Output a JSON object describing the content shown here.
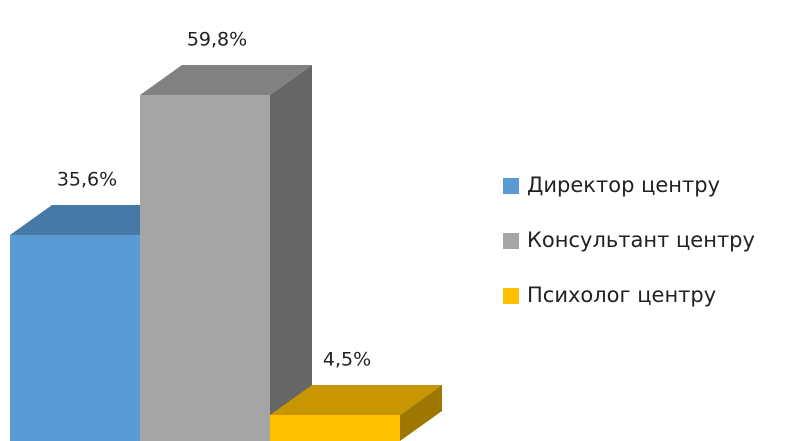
{
  "chart_data": {
    "type": "bar3d",
    "series": [
      {
        "name": "Директор центру",
        "color": "#5b9bd5",
        "values": [
          35.6
        ],
        "value_labels": [
          "35,6%"
        ]
      },
      {
        "name": "Консультант центру",
        "color": "#a5a5a5",
        "values": [
          59.8
        ],
        "value_labels": [
          "59,8%"
        ]
      },
      {
        "name": "Психолог центру",
        "color": "#ffc000",
        "values": [
          4.5
        ],
        "value_labels": [
          "4,5%"
        ]
      }
    ]
  }
}
